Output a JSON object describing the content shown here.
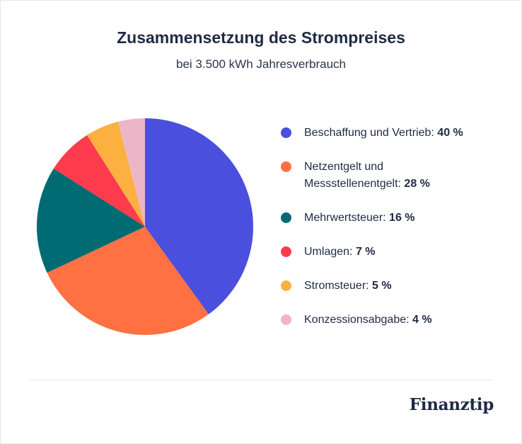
{
  "chart_data": {
    "type": "pie",
    "title": "Zusammensetzung des Strompreises",
    "subtitle": "bei 3.500 kWh Jahresverbrauch",
    "legend_position": "right",
    "slices": [
      {
        "label": "Beschaffung und Vertrieb:",
        "value_label": "40 %",
        "value": 40,
        "color": "#4a4fde"
      },
      {
        "label": "Netzentgelt und Messstellenentgelt:",
        "value_label": "28 %",
        "value": 28,
        "color": "#ff7043"
      },
      {
        "label": "Mehrwertsteuer:",
        "value_label": "16 %",
        "value": 16,
        "color": "#006b73"
      },
      {
        "label": "Umlagen:",
        "value_label": "7 %",
        "value": 7,
        "color": "#ff3b4e"
      },
      {
        "label": "Stromsteuer:",
        "value_label": "5 %",
        "value": 5,
        "color": "#fbb040"
      },
      {
        "label": "Konzessionsabgabe:",
        "value_label": "4 %",
        "value": 4,
        "color": "#ecb6c8"
      }
    ]
  },
  "brand": {
    "logo_text": "Finanztip"
  }
}
